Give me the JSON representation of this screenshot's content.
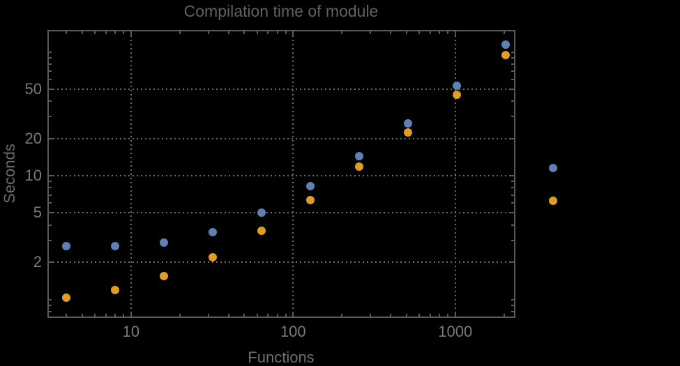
{
  "chart_data": {
    "type": "scatter",
    "title": "Compilation time of module",
    "xlabel": "Functions",
    "ylabel": "Seconds",
    "x_scale": "log",
    "y_scale": "log",
    "x_range": [
      3.05,
      2350
    ],
    "y_range": [
      0.71,
      150.5
    ],
    "grid": "dotted gridlines at labeled ticks only",
    "x_ticks": {
      "values": [
        10,
        100,
        1000
      ],
      "labels": [
        "10",
        "100",
        "1000"
      ]
    },
    "x_minor_ticks": [
      4,
      5,
      6,
      7,
      8,
      9,
      20,
      30,
      40,
      50,
      60,
      70,
      80,
      90,
      200,
      300,
      400,
      500,
      600,
      700,
      800,
      900,
      2000
    ],
    "y_ticks": {
      "values": [
        2,
        5,
        10,
        20,
        50
      ],
      "labels": [
        "2",
        "5",
        "10",
        "20",
        "50"
      ]
    },
    "y_minor_ticks": [
      0.8,
      0.9,
      1,
      3,
      4,
      6,
      7,
      8,
      9,
      30,
      40,
      60,
      70,
      80,
      90,
      100
    ],
    "x": [
      4,
      8,
      16,
      32,
      64,
      128,
      256,
      512,
      1024,
      2048
    ],
    "series": [
      {
        "name": "blue",
        "color": "#5E81B5",
        "values": [
          2.7,
          2.7,
          2.9,
          3.5,
          5.0,
          8.2,
          14.4,
          26.5,
          53,
          115
        ]
      },
      {
        "name": "orange",
        "color": "#E19C24",
        "values": [
          1.03,
          1.2,
          1.55,
          2.2,
          3.6,
          6.35,
          11.8,
          22.4,
          45,
          94
        ]
      }
    ],
    "detached_points": [
      {
        "series": "blue",
        "color": "#5E81B5",
        "x": 4000,
        "y": 11.5
      },
      {
        "series": "orange",
        "color": "#E19C24",
        "x": 4000,
        "y": 6.3
      }
    ],
    "colors": {
      "background": "#000000",
      "frame": "#5a5a5a",
      "gridline": "#6e6e6e",
      "title_text": "#616161",
      "tick_label_text": "#7a7a7a",
      "axis_label_text": "#6d6d6d"
    }
  }
}
